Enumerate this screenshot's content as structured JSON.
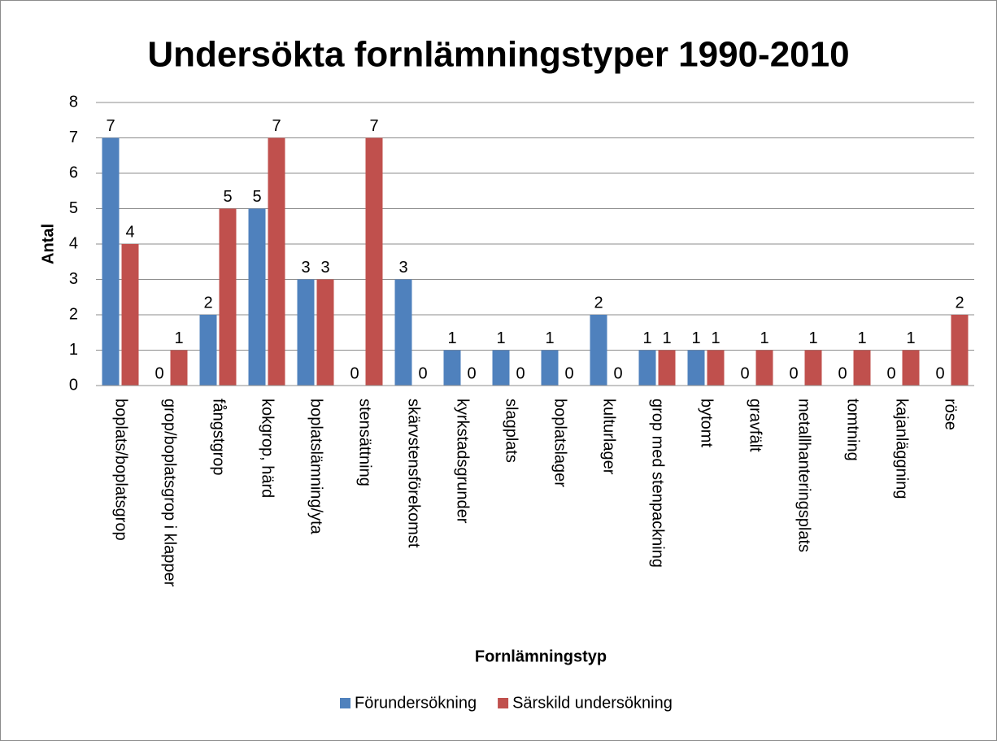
{
  "chart_data": {
    "type": "bar",
    "title": "Undersökta fornlämningstyper 1990-2010",
    "x_label": "Fornlämningstyp",
    "y_label": "Antal",
    "categories": [
      "boplats/boplatsgrop",
      "grop/boplatsgrop i klapper",
      "fångstgrop",
      "kokgrop, härd",
      "boplatslämning/yta",
      "stensättning",
      "skärvstensförekomst",
      "kyrkstadsgrunder",
      "slagplats",
      "boplatslager",
      "kulturlager",
      "grop med stenpackning",
      "bytomt",
      "gravfält",
      "metallhanteringsplats",
      "tomtning",
      "kajanläggning",
      "röse"
    ],
    "series": [
      {
        "name": "Förundersökning",
        "color": "#4f81bd",
        "values": [
          7,
          0,
          2,
          5,
          3,
          0,
          3,
          1,
          1,
          1,
          2,
          1,
          1,
          0,
          0,
          0,
          0,
          0
        ]
      },
      {
        "name": "Särskild undersökning",
        "color": "#c0504d",
        "values": [
          4,
          1,
          5,
          7,
          3,
          7,
          0,
          0,
          0,
          0,
          0,
          1,
          1,
          1,
          1,
          1,
          1,
          2
        ]
      }
    ],
    "ylim": [
      0,
      8
    ],
    "yticks": [
      0,
      1,
      2,
      3,
      4,
      5,
      6,
      7,
      8
    ],
    "grid": true,
    "legend": "bottom"
  }
}
